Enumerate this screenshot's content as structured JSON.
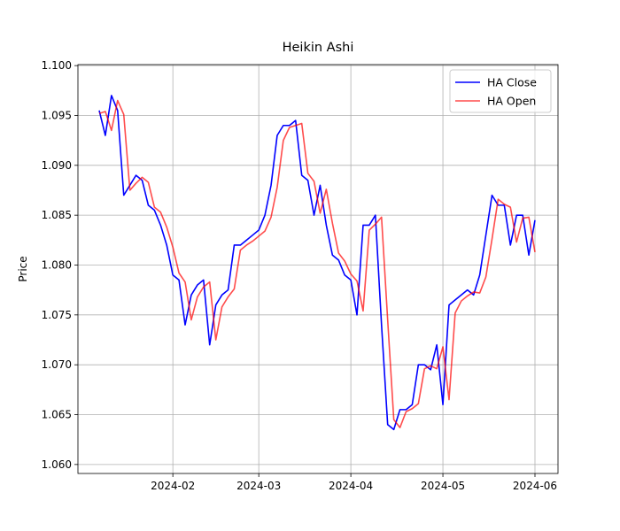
{
  "chart_data": {
    "type": "line",
    "title": "Heikin Ashi",
    "y_label": "Price",
    "categories": [
      null,
      null,
      null,
      null,
      null,
      null,
      null,
      null,
      null,
      null,
      null,
      null,
      "2024-02",
      null,
      null,
      null,
      null,
      null,
      null,
      null,
      null,
      null,
      null,
      null,
      null,
      null,
      "2024-03",
      null,
      null,
      null,
      null,
      null,
      null,
      null,
      null,
      null,
      null,
      null,
      null,
      null,
      null,
      "2024-04",
      null,
      null,
      null,
      null,
      null,
      null,
      null,
      null,
      null,
      null,
      null,
      null,
      null,
      null,
      "2024-05",
      null,
      null,
      null,
      null,
      null,
      null,
      null,
      null,
      null,
      null,
      null,
      null,
      null,
      null,
      "2024-06"
    ],
    "series": [
      {
        "name": "HA Close",
        "color": "#0000ff",
        "opacity": 1,
        "values": [
          1.0955,
          1.093,
          1.097,
          1.0955,
          1.087,
          1.088,
          1.089,
          1.0885,
          1.086,
          1.0855,
          1.084,
          1.082,
          1.079,
          1.0785,
          1.074,
          1.077,
          1.078,
          1.0785,
          1.072,
          1.076,
          1.077,
          1.0775,
          1.082,
          1.082,
          1.0825,
          1.083,
          1.0835,
          1.085,
          1.088,
          1.093,
          1.094,
          1.094,
          1.0945,
          1.089,
          1.0885,
          1.085,
          1.088,
          1.084,
          1.081,
          1.0805,
          1.079,
          1.0785,
          1.075,
          1.084,
          1.084,
          1.085,
          1.074,
          1.064,
          1.0635,
          1.0655,
          1.0655,
          1.066,
          1.07,
          1.07,
          1.0695,
          1.072,
          1.066,
          1.076,
          1.0765,
          1.077,
          1.0775,
          1.077,
          1.079,
          1.083,
          1.087,
          1.086,
          1.086,
          1.082,
          1.085,
          1.085,
          1.081,
          1.0845
        ]
      },
      {
        "name": "HA Open",
        "color": "#ff0000",
        "opacity": 0.7,
        "values": [
          1.0952,
          1.0954,
          1.0935,
          1.0965,
          1.0951,
          1.0875,
          1.0882,
          1.0888,
          1.0883,
          1.0858,
          1.0853,
          1.0838,
          1.0818,
          1.0792,
          1.0783,
          1.0745,
          1.0768,
          1.0778,
          1.0783,
          1.0725,
          1.0758,
          1.0768,
          1.0776,
          1.0815,
          1.082,
          1.0824,
          1.0829,
          1.0834,
          1.0848,
          1.0878,
          1.0925,
          1.0938,
          1.094,
          1.0942,
          1.0892,
          1.0884,
          1.0852,
          1.0876,
          1.0842,
          1.0812,
          1.0804,
          1.0791,
          1.0784,
          1.0754,
          1.0835,
          1.0841,
          1.0848,
          1.0745,
          1.0645,
          1.0637,
          1.0653,
          1.0656,
          1.0661,
          1.0696,
          1.0699,
          1.0696,
          1.0718,
          1.0665,
          1.0752,
          1.0764,
          1.0769,
          1.0773,
          1.0772,
          1.0788,
          1.0826,
          1.0866,
          1.0861,
          1.0858,
          1.0823,
          1.0847,
          1.0848,
          1.0813
        ]
      }
    ],
    "ylim": [
      1.0591,
      1.1001
    ],
    "yticks": [
      {
        "value": 1.06,
        "label": "1.060"
      },
      {
        "value": 1.065,
        "label": "1.065"
      },
      {
        "value": 1.07,
        "label": "1.070"
      },
      {
        "value": 1.075,
        "label": "1.075"
      },
      {
        "value": 1.08,
        "label": "1.080"
      },
      {
        "value": 1.085,
        "label": "1.085"
      },
      {
        "value": 1.09,
        "label": "1.090"
      },
      {
        "value": 1.095,
        "label": "1.095"
      },
      {
        "value": 1.1,
        "label": "1.100"
      }
    ],
    "grid": true,
    "legend": "upper right"
  }
}
